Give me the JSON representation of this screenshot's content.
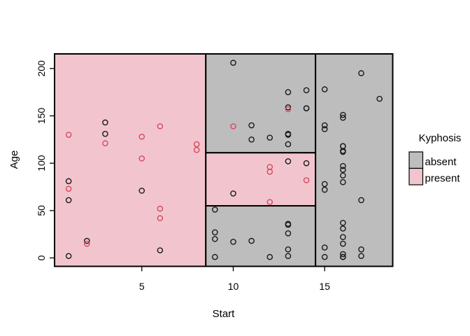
{
  "legend": {
    "title": "Kyphosis",
    "items": [
      {
        "label": "absent",
        "color_key": "absent_fill"
      },
      {
        "label": "present",
        "color_key": "present_fill"
      }
    ]
  },
  "colors": {
    "absent_fill": "#bdbdbd",
    "present_fill": "#f2c5ce",
    "absent_point": "#1a1a1a",
    "present_point": "#d9485f",
    "border": "#000000"
  },
  "chart_data": {
    "type": "scatter",
    "title": "",
    "xlabel": "Start",
    "ylabel": "Age",
    "xlim": [
      0.23,
      18.72
    ],
    "ylim": [
      -8.9,
      215.4
    ],
    "x_ticks": [
      5,
      10,
      15
    ],
    "y_ticks": [
      0,
      50,
      100,
      150,
      200
    ],
    "grid": false,
    "legend_position": "right",
    "regions_note": "rpart partition: Start<8.5 -> present; 8.5<=Start<14.5 & 55<=Age<111 -> present; else absent",
    "regions": [
      {
        "x0": 0.23,
        "x1": 8.5,
        "y0": -8.9,
        "y1": 215.4,
        "class": "present"
      },
      {
        "x0": 8.5,
        "x1": 14.5,
        "y0": 111,
        "y1": 215.4,
        "class": "absent"
      },
      {
        "x0": 8.5,
        "x1": 14.5,
        "y0": 55,
        "y1": 111,
        "class": "present"
      },
      {
        "x0": 8.5,
        "x1": 14.5,
        "y0": -8.9,
        "y1": 55,
        "class": "absent"
      },
      {
        "x0": 14.5,
        "x1": 18.72,
        "y0": -8.9,
        "y1": 215.4,
        "class": "absent"
      }
    ],
    "points_fields": [
      "start",
      "age",
      "kyphosis"
    ],
    "points": [
      [
        5,
        71,
        "absent"
      ],
      [
        14,
        158,
        "absent"
      ],
      [
        5,
        128,
        "present"
      ],
      [
        1,
        2,
        "absent"
      ],
      [
        15,
        1,
        "absent"
      ],
      [
        16,
        1,
        "absent"
      ],
      [
        17,
        61,
        "absent"
      ],
      [
        16,
        37,
        "absent"
      ],
      [
        16,
        113,
        "absent"
      ],
      [
        12,
        59,
        "present"
      ],
      [
        14,
        82,
        "present"
      ],
      [
        16,
        148,
        "absent"
      ],
      [
        2,
        18,
        "absent"
      ],
      [
        12,
        1,
        "absent"
      ],
      [
        18,
        168,
        "absent"
      ],
      [
        16,
        1,
        "absent"
      ],
      [
        15,
        78,
        "absent"
      ],
      [
        13,
        175,
        "absent"
      ],
      [
        16,
        80,
        "absent"
      ],
      [
        9,
        27,
        "absent"
      ],
      [
        16,
        22,
        "absent"
      ],
      [
        5,
        105,
        "present"
      ],
      [
        12,
        96,
        "present"
      ],
      [
        3,
        131,
        "absent"
      ],
      [
        2,
        15,
        "present"
      ],
      [
        13,
        9,
        "absent"
      ],
      [
        6,
        8,
        "absent"
      ],
      [
        14,
        100,
        "absent"
      ],
      [
        16,
        4,
        "absent"
      ],
      [
        16,
        151,
        "absent"
      ],
      [
        16,
        31,
        "absent"
      ],
      [
        11,
        125,
        "absent"
      ],
      [
        13,
        130,
        "absent"
      ],
      [
        16,
        112,
        "absent"
      ],
      [
        11,
        140,
        "absent"
      ],
      [
        16,
        93,
        "absent"
      ],
      [
        9,
        1,
        "absent"
      ],
      [
        6,
        52,
        "present"
      ],
      [
        9,
        20,
        "absent"
      ],
      [
        12,
        91,
        "present"
      ],
      [
        1,
        73,
        "present"
      ],
      [
        13,
        35,
        "absent"
      ],
      [
        3,
        143,
        "absent"
      ],
      [
        1,
        61,
        "absent"
      ],
      [
        16,
        97,
        "absent"
      ],
      [
        10,
        139,
        "present"
      ],
      [
        15,
        136,
        "absent"
      ],
      [
        13,
        131,
        "absent"
      ],
      [
        3,
        121,
        "present"
      ],
      [
        14,
        177,
        "absent"
      ],
      [
        10,
        68,
        "absent"
      ],
      [
        17,
        9,
        "absent"
      ],
      [
        6,
        139,
        "present"
      ],
      [
        17,
        2,
        "absent"
      ],
      [
        15,
        140,
        "absent"
      ],
      [
        15,
        72,
        "absent"
      ],
      [
        13,
        2,
        "absent"
      ],
      [
        8,
        120,
        "present"
      ],
      [
        9,
        51,
        "absent"
      ],
      [
        13,
        102,
        "absent"
      ],
      [
        1,
        130,
        "present"
      ],
      [
        8,
        114,
        "present"
      ],
      [
        1,
        81,
        "absent"
      ],
      [
        16,
        118,
        "absent"
      ],
      [
        16,
        118,
        "absent"
      ],
      [
        10,
        17,
        "absent"
      ],
      [
        17,
        195,
        "absent"
      ],
      [
        13,
        159,
        "absent"
      ],
      [
        11,
        18,
        "absent"
      ],
      [
        16,
        15,
        "absent"
      ],
      [
        14,
        158,
        "absent"
      ],
      [
        12,
        127,
        "absent"
      ],
      [
        16,
        87,
        "absent"
      ],
      [
        10,
        206,
        "absent"
      ],
      [
        15,
        11,
        "absent"
      ],
      [
        15,
        178,
        "absent"
      ],
      [
        13,
        157,
        "present"
      ],
      [
        13,
        26,
        "absent"
      ],
      [
        13,
        120,
        "absent"
      ],
      [
        6,
        42,
        "present"
      ],
      [
        13,
        36,
        "absent"
      ]
    ]
  }
}
